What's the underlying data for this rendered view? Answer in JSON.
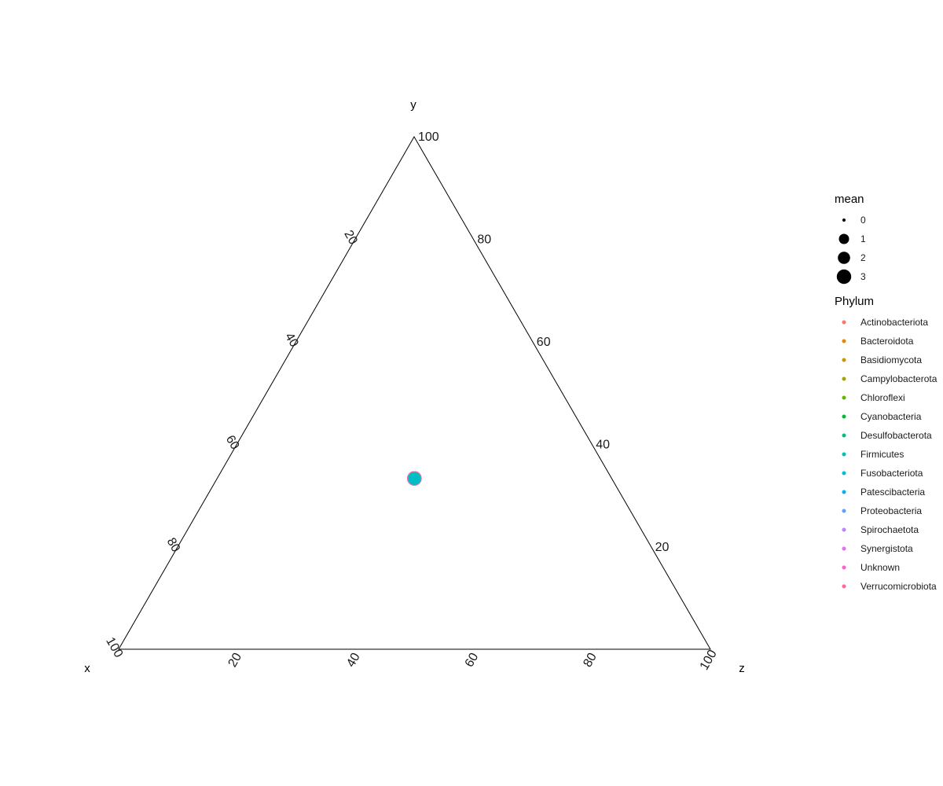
{
  "chart_data": {
    "type": "scatter",
    "subtype": "ternary",
    "axes": {
      "x": {
        "label": "x",
        "ticks": [
          "20",
          "40",
          "60",
          "80",
          "100"
        ]
      },
      "y": {
        "label": "y",
        "ticks": [
          "20",
          "40",
          "60",
          "80",
          "100"
        ]
      },
      "z": {
        "label": "z",
        "ticks": [
          "20",
          "40",
          "60",
          "80",
          "100"
        ]
      }
    },
    "points": [
      {
        "x": 33.3,
        "y": 33.3,
        "z": 33.3,
        "mean": 3,
        "phylum": "Firmicutes",
        "color": "#00BFC4"
      }
    ],
    "legend": {
      "placement": "right",
      "size": {
        "title": "mean",
        "entries": [
          {
            "label": "0",
            "value": 0
          },
          {
            "label": "1",
            "value": 1
          },
          {
            "label": "2",
            "value": 2
          },
          {
            "label": "3",
            "value": 3
          }
        ]
      },
      "color": {
        "title": "Phylum",
        "entries": [
          {
            "label": "Actinobacteriota",
            "color": "#F8766D"
          },
          {
            "label": "Bacteroidota",
            "color": "#E58700"
          },
          {
            "label": "Basidiomycota",
            "color": "#C99800"
          },
          {
            "label": "Campylobacterota",
            "color": "#A3A500"
          },
          {
            "label": "Chloroflexi",
            "color": "#6BB100"
          },
          {
            "label": "Cyanobacteria",
            "color": "#00BA38"
          },
          {
            "label": "Desulfobacterota",
            "color": "#00BF7D"
          },
          {
            "label": "Firmicutes",
            "color": "#00C0AF"
          },
          {
            "label": "Fusobacteriota",
            "color": "#00BCD8"
          },
          {
            "label": "Patescibacteria",
            "color": "#00B0F6"
          },
          {
            "label": "Proteobacteria",
            "color": "#619CFF"
          },
          {
            "label": "Spirochaetota",
            "color": "#B983FF"
          },
          {
            "label": "Synergistota",
            "color": "#E76BF3"
          },
          {
            "label": "Unknown",
            "color": "#FD61D1"
          },
          {
            "label": "Verrucomicrobiota",
            "color": "#FF67A4"
          }
        ]
      }
    },
    "grid": false
  }
}
